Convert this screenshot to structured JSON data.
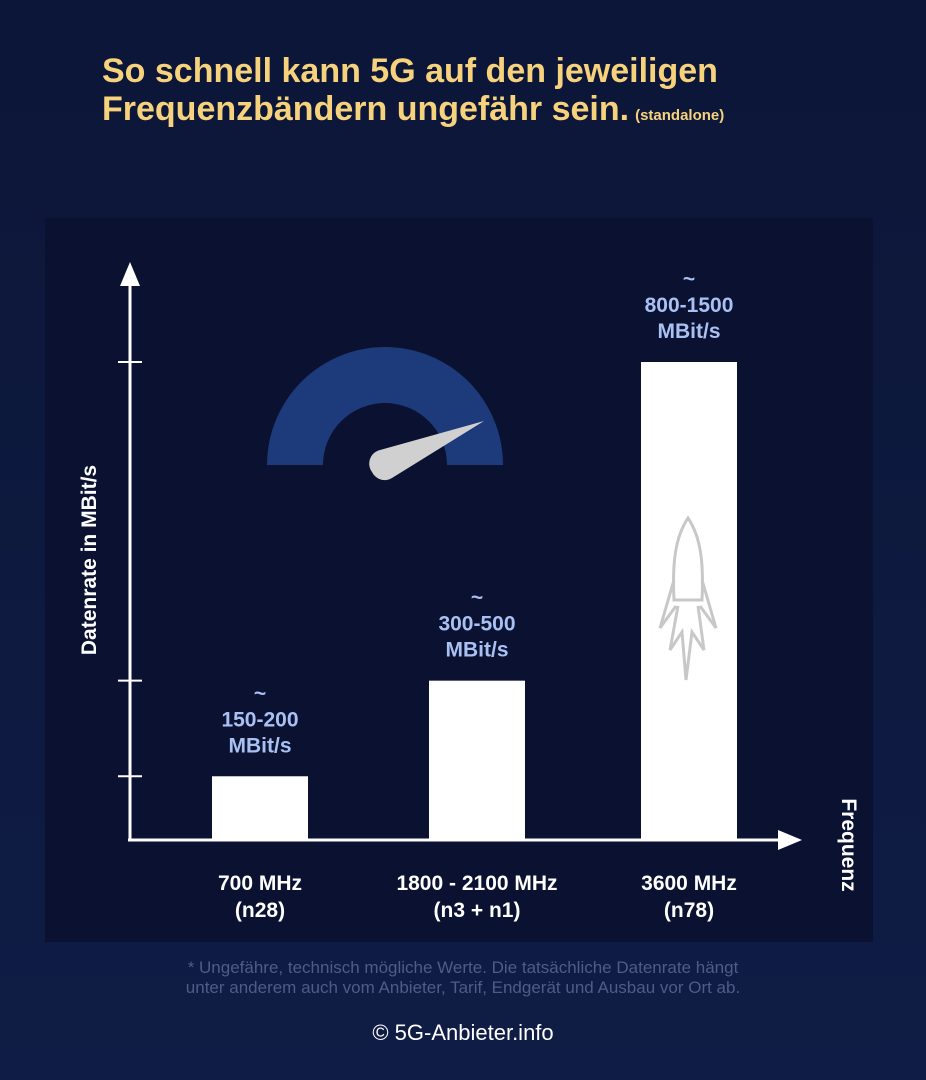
{
  "title": {
    "line1": "So schnell kann 5G auf den jeweiligen",
    "line2": "Frequenzbändern ungefähr sein.",
    "suffix": "(standalone)"
  },
  "chart_data": {
    "type": "bar",
    "title": "So schnell kann 5G auf den jeweiligen Frequenzbändern ungefähr sein. (standalone)",
    "ylabel": "Datenrate in MBit/s",
    "xlabel": "Frequenz",
    "categories": [
      {
        "line1": "700 MHz",
        "line2": "(n28)"
      },
      {
        "line1": "1800 - 2100 MHz",
        "line2": "(n3 + n1)"
      },
      {
        "line1": "3600 MHz",
        "line2": "(n78)"
      }
    ],
    "values": [
      200,
      500,
      1500
    ],
    "value_labels": [
      {
        "tilde": "~",
        "range": "150-200",
        "unit": "MBit/s"
      },
      {
        "tilde": "~",
        "range": "300-500",
        "unit": "MBit/s"
      },
      {
        "tilde": "~",
        "range": "800-1500",
        "unit": "MBit/s"
      }
    ],
    "ylim": [
      0,
      1500
    ],
    "grid": false
  },
  "footnote": {
    "line1": "* Ungefähre, technisch mögliche Werte. Die tatsächliche Datenrate hängt",
    "line2": "unter anderem auch vom Anbieter, Tarif, Endgerät und Ausbau vor Ort ab."
  },
  "copyright": "© 5G-Anbieter.info",
  "colors": {
    "title": "#f7d27c",
    "value_label": "#a9c1f2",
    "bar": "#ffffff",
    "gauge": "#1d3a7a"
  }
}
